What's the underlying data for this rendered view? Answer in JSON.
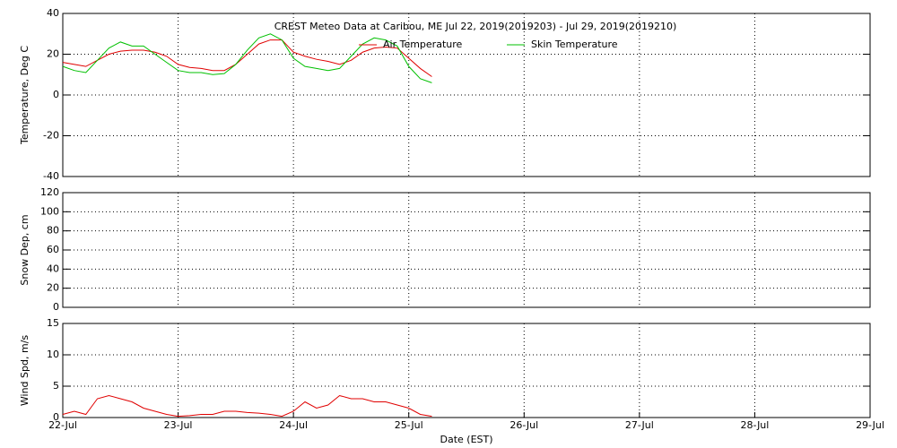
{
  "chart_data": [
    {
      "type": "line",
      "title": "CREST Meteo Data at Caribou, ME   Jul 22, 2019(2019203) - Jul 29, 2019(2019210)",
      "ylabel": "Temperature, Deg C",
      "xlim": [
        0,
        7
      ],
      "ylim": [
        -40,
        40
      ],
      "yticks": [
        -40,
        -20,
        0,
        20,
        40
      ],
      "grid": true,
      "x": [
        0,
        0.1,
        0.2,
        0.3,
        0.4,
        0.5,
        0.6,
        0.7,
        0.8,
        0.9,
        1,
        1.1,
        1.2,
        1.3,
        1.4,
        1.5,
        1.6,
        1.7,
        1.8,
        1.9,
        2,
        2.1,
        2.2,
        2.3,
        2.4,
        2.5,
        2.6,
        2.7,
        2.8,
        2.9,
        3,
        3.1,
        3.2
      ],
      "series": [
        {
          "name": "Air Temperature",
          "color": "#e00000",
          "values": [
            16,
            15,
            14,
            17,
            20,
            21.5,
            22,
            22,
            21,
            19,
            15,
            13.5,
            13,
            12,
            12,
            15,
            20,
            25,
            27,
            27,
            21,
            19,
            17.5,
            16.5,
            15,
            17,
            21,
            23,
            23.5,
            23,
            18,
            13,
            9
          ]
        },
        {
          "name": "Skin Temperature",
          "color": "#00c000",
          "values": [
            14,
            12,
            11,
            17,
            23,
            26,
            24,
            24,
            20,
            16,
            12,
            11,
            11,
            10,
            10.5,
            15,
            22,
            28,
            30,
            27,
            18,
            14,
            13,
            12,
            13,
            19,
            25,
            28,
            27,
            24,
            14,
            8,
            6
          ]
        }
      ]
    },
    {
      "type": "line",
      "ylabel": "Snow Dep, cm",
      "xlim": [
        0,
        7
      ],
      "ylim": [
        0,
        120
      ],
      "yticks": [
        0,
        20,
        40,
        60,
        80,
        100,
        120
      ],
      "grid": true,
      "series": []
    },
    {
      "type": "line",
      "ylabel": "Wind Spd, m/s",
      "xlabel": "Date (EST)",
      "xlim": [
        0,
        7
      ],
      "ylim": [
        0,
        15
      ],
      "yticks": [
        0,
        5,
        10,
        15
      ],
      "grid": true,
      "xticks": [
        {
          "value": 0,
          "label": "22-Jul"
        },
        {
          "value": 1,
          "label": "23-Jul"
        },
        {
          "value": 2,
          "label": "24-Jul"
        },
        {
          "value": 3,
          "label": "25-Jul"
        },
        {
          "value": 4,
          "label": "26-Jul"
        },
        {
          "value": 5,
          "label": "27-Jul"
        },
        {
          "value": 6,
          "label": "28-Jul"
        },
        {
          "value": 7,
          "label": "29-Jul"
        }
      ],
      "x": [
        0,
        0.1,
        0.2,
        0.3,
        0.4,
        0.5,
        0.6,
        0.7,
        0.8,
        0.9,
        1,
        1.1,
        1.2,
        1.3,
        1.4,
        1.5,
        1.6,
        1.7,
        1.8,
        1.9,
        2,
        2.1,
        2.2,
        2.3,
        2.4,
        2.5,
        2.6,
        2.7,
        2.8,
        2.9,
        3,
        3.1,
        3.2
      ],
      "series": [
        {
          "name": "Wind Speed",
          "color": "#e00000",
          "values": [
            0.5,
            1,
            0.5,
            3,
            3.5,
            3,
            2.5,
            1.5,
            1,
            0.5,
            0.2,
            0.3,
            0.5,
            0.5,
            1,
            1,
            0.8,
            0.7,
            0.5,
            0.2,
            1,
            2.5,
            1.5,
            2,
            3.5,
            3,
            3,
            2.5,
            2.5,
            2,
            1.5,
            0.5,
            0.2
          ]
        }
      ]
    }
  ]
}
